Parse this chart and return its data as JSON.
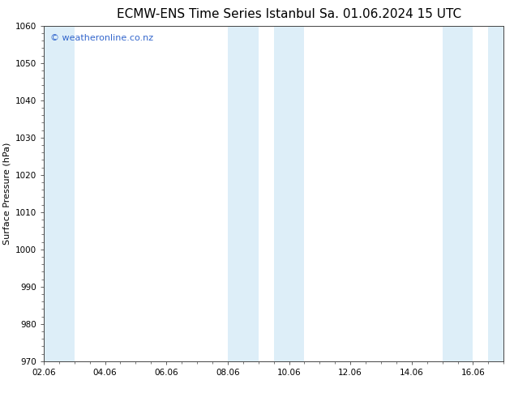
{
  "title_left": "ECMW-ENS Time Series Istanbul",
  "title_right": "Sa. 01.06.2024 15 UTC",
  "ylabel": "Surface Pressure (hPa)",
  "ylim": [
    970,
    1060
  ],
  "yticks": [
    970,
    980,
    990,
    1000,
    1010,
    1020,
    1030,
    1040,
    1050,
    1060
  ],
  "xlim_start": 0.0,
  "xlim_end": 15.0,
  "xtick_labels": [
    "02.06",
    "04.06",
    "06.06",
    "08.06",
    "10.06",
    "12.06",
    "14.06",
    "16.06"
  ],
  "xtick_positions": [
    0,
    2,
    4,
    6,
    8,
    10,
    12,
    14
  ],
  "shaded_bands": [
    {
      "x_start": 0.0,
      "x_end": 1.0,
      "color": "#ddeef8"
    },
    {
      "x_start": 6.0,
      "x_end": 7.0,
      "color": "#ddeef8"
    },
    {
      "x_start": 7.5,
      "x_end": 8.5,
      "color": "#ddeef8"
    },
    {
      "x_start": 13.0,
      "x_end": 14.0,
      "color": "#ddeef8"
    },
    {
      "x_start": 14.5,
      "x_end": 15.0,
      "color": "#ddeef8"
    }
  ],
  "watermark_text": "© weatheronline.co.nz",
  "watermark_color": "#3366cc",
  "watermark_fontsize": 8,
  "bg_color": "#ffffff",
  "plot_bg_color": "#ffffff",
  "title_fontsize": 11,
  "ylabel_fontsize": 8,
  "tick_fontsize": 7.5,
  "spine_color": "#444444"
}
